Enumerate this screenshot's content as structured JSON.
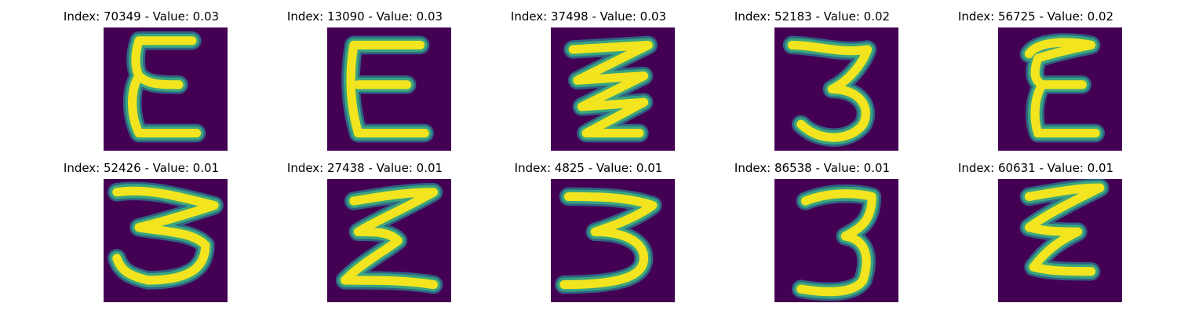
{
  "colors": {
    "background": "#440154",
    "stroke_core": "#f2e41e",
    "stroke_edge": "#3aa57f",
    "stroke_mid": "#2a7a8e"
  },
  "panels": [
    {
      "index": "70349",
      "value": "0.03",
      "glyph": "epsilon-like"
    },
    {
      "index": "13090",
      "value": "0.03",
      "glyph": "epsilon-like"
    },
    {
      "index": "37498",
      "value": "0.03",
      "glyph": "zigzag"
    },
    {
      "index": "52183",
      "value": "0.02",
      "glyph": "three"
    },
    {
      "index": "56725",
      "value": "0.02",
      "glyph": "epsilon-like"
    },
    {
      "index": "52426",
      "value": "0.01",
      "glyph": "three"
    },
    {
      "index": "27438",
      "value": "0.01",
      "glyph": "epsilon-like"
    },
    {
      "index": "4825",
      "value": "0.01",
      "glyph": "three"
    },
    {
      "index": "86538",
      "value": "0.01",
      "glyph": "three"
    },
    {
      "index": "60631",
      "value": "0.01",
      "glyph": "epsilon-like"
    }
  ]
}
